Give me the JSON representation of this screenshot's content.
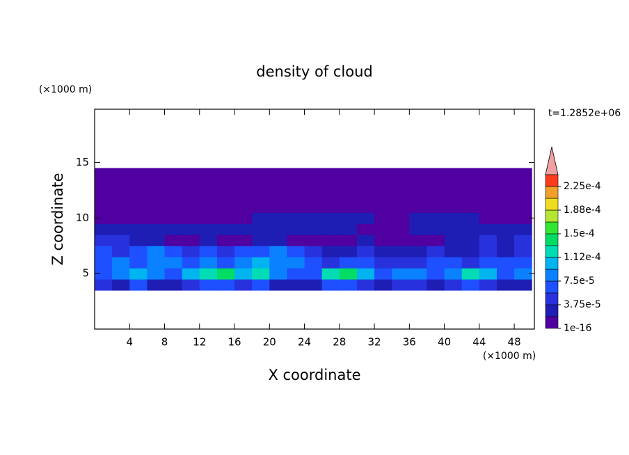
{
  "chart_data": {
    "type": "heatmap",
    "title": "density of cloud",
    "x_label": "X coordinate",
    "y_label": "Z coordinate",
    "x_unit": "(×1000 m)",
    "y_unit": "(×1000 m)",
    "time_label": "t=1.2852e+06",
    "xlim": [
      0,
      50.3
    ],
    "ylim": [
      0,
      19.8
    ],
    "xticks": [
      4,
      8,
      12,
      16,
      20,
      24,
      28,
      32,
      36,
      40,
      44,
      48
    ],
    "yticks": [
      5,
      10,
      15
    ],
    "xbins": [
      0,
      2,
      4,
      6,
      8,
      10,
      12,
      14,
      16,
      18,
      20,
      22,
      24,
      26,
      28,
      30,
      32,
      34,
      36,
      38,
      40,
      42,
      44,
      46,
      48,
      50
    ],
    "zbins": [
      3.5,
      4.5,
      5.5,
      6.5,
      7.5,
      8.5,
      9.5,
      10.5,
      11.5,
      12.5,
      13.5,
      14.5
    ],
    "values": [
      [
        4.5e-05,
        3e-05,
        6e-05,
        3e-05,
        3e-05,
        4.5e-05,
        6e-05,
        6e-05,
        4.5e-05,
        6e-05,
        3e-05,
        3e-05,
        3e-05,
        6e-05,
        6e-05,
        4.5e-05,
        3e-05,
        4.5e-05,
        4.5e-05,
        3e-05,
        4.5e-05,
        6e-05,
        4.5e-05,
        3e-05,
        3e-05
      ],
      [
        6e-05,
        8e-05,
        0.0001,
        8e-05,
        6e-05,
        0.0001,
        0.00012,
        0.00014,
        0.0001,
        0.00012,
        8e-05,
        6e-05,
        6e-05,
        0.00012,
        0.00014,
        0.0001,
        6e-05,
        8e-05,
        8e-05,
        6e-05,
        8e-05,
        0.00012,
        0.0001,
        6e-05,
        8e-05
      ],
      [
        6e-05,
        8e-05,
        6e-05,
        8e-05,
        8e-05,
        6e-05,
        8e-05,
        6e-05,
        8e-05,
        0.0001,
        8e-05,
        8e-05,
        6e-05,
        4.5e-05,
        6e-05,
        6e-05,
        4.5e-05,
        4.5e-05,
        4.5e-05,
        6e-05,
        6e-05,
        4.5e-05,
        6e-05,
        6e-05,
        6e-05
      ],
      [
        6e-05,
        4.5e-05,
        6e-05,
        8e-05,
        6e-05,
        4.5e-05,
        6e-05,
        4.5e-05,
        6e-05,
        6e-05,
        8e-05,
        6e-05,
        4.5e-05,
        3e-05,
        3e-05,
        4.5e-05,
        3e-05,
        3e-05,
        3e-05,
        4.5e-05,
        3e-05,
        3e-05,
        4.5e-05,
        3e-05,
        4.5e-05
      ],
      [
        4.5e-05,
        4.5e-05,
        3e-05,
        3e-05,
        5e-06,
        5e-06,
        3e-05,
        5e-06,
        5e-06,
        3e-05,
        3e-05,
        5e-06,
        5e-06,
        5e-06,
        5e-06,
        3e-05,
        5e-06,
        5e-06,
        5e-06,
        5e-06,
        3e-05,
        3e-05,
        4.5e-05,
        3e-05,
        4.5e-05
      ],
      [
        3e-05,
        3e-05,
        3e-05,
        3e-05,
        3e-05,
        3e-05,
        3e-05,
        3e-05,
        3e-05,
        3e-05,
        3e-05,
        3e-05,
        3e-05,
        3e-05,
        3e-05,
        5e-06,
        5e-06,
        5e-06,
        3e-05,
        3e-05,
        3e-05,
        3e-05,
        3e-05,
        3e-05,
        3e-05
      ],
      [
        5e-06,
        5e-06,
        5e-06,
        5e-06,
        5e-06,
        5e-06,
        5e-06,
        5e-06,
        5e-06,
        3e-05,
        3e-05,
        3e-05,
        3e-05,
        3e-05,
        3e-05,
        3e-05,
        5e-06,
        5e-06,
        3e-05,
        3e-05,
        3e-05,
        3e-05,
        5e-06,
        5e-06,
        5e-06
      ],
      [
        5e-06,
        5e-06,
        5e-06,
        5e-06,
        5e-06,
        5e-06,
        5e-06,
        5e-06,
        5e-06,
        5e-06,
        5e-06,
        5e-06,
        5e-06,
        5e-06,
        5e-06,
        5e-06,
        5e-06,
        5e-06,
        5e-06,
        5e-06,
        5e-06,
        5e-06,
        5e-06,
        5e-06,
        5e-06
      ],
      [
        5e-06,
        5e-06,
        5e-06,
        5e-06,
        5e-06,
        5e-06,
        5e-06,
        5e-06,
        5e-06,
        5e-06,
        5e-06,
        5e-06,
        5e-06,
        5e-06,
        5e-06,
        5e-06,
        5e-06,
        5e-06,
        5e-06,
        5e-06,
        5e-06,
        5e-06,
        5e-06,
        5e-06,
        5e-06
      ],
      [
        5e-06,
        5e-06,
        5e-06,
        5e-06,
        5e-06,
        5e-06,
        5e-06,
        5e-06,
        5e-06,
        5e-06,
        5e-06,
        5e-06,
        5e-06,
        5e-06,
        5e-06,
        5e-06,
        5e-06,
        5e-06,
        5e-06,
        5e-06,
        5e-06,
        5e-06,
        5e-06,
        5e-06,
        5e-06
      ],
      [
        5e-06,
        5e-06,
        5e-06,
        5e-06,
        5e-06,
        5e-06,
        5e-06,
        5e-06,
        5e-06,
        5e-06,
        5e-06,
        5e-06,
        5e-06,
        5e-06,
        5e-06,
        5e-06,
        5e-06,
        5e-06,
        5e-06,
        5e-06,
        5e-06,
        5e-06,
        5e-06,
        5e-06,
        5e-06
      ]
    ],
    "levels": [
      1e-16,
      1.875e-05,
      3.75e-05,
      5.625e-05,
      7.5e-05,
      9.375e-05,
      0.0001125,
      0.00013125,
      0.00015,
      0.00016875,
      0.0001875,
      0.00020625,
      0.000225,
      0.00024375
    ],
    "colors": [
      "#5000a0",
      "#1e1eb4",
      "#2832dc",
      "#1e50ff",
      "#0a82ff",
      "#00b4f0",
      "#00dcb4",
      "#00dc64",
      "#32e632",
      "#b4e632",
      "#f0dc1e",
      "#f0a028",
      "#fa3c1e"
    ],
    "extend_color": "#f0a0a0",
    "colorbar_ticks": [
      {
        "value": 1e-16,
        "label": "1e-16"
      },
      {
        "value": 3.75e-05,
        "label": "3.75e-5"
      },
      {
        "value": 7.5e-05,
        "label": "7.5e-5"
      },
      {
        "value": 0.0001125,
        "label": "1.12e-4"
      },
      {
        "value": 0.00015,
        "label": "1.5e-4"
      },
      {
        "value": 0.0001875,
        "label": "1.88e-4"
      },
      {
        "value": 0.000225,
        "label": "2.25e-4"
      }
    ]
  }
}
